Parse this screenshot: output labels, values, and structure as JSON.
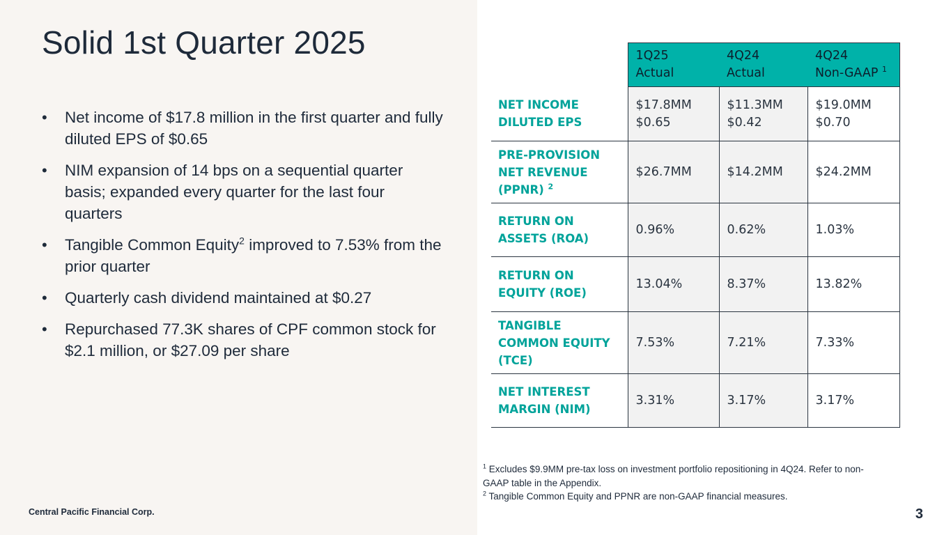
{
  "slide": {
    "title": "Solid 1st Quarter 2025",
    "company": "Central Pacific Financial Corp.",
    "page_number": "3"
  },
  "bullets": [
    {
      "text": "Net income of $17.8 million in the first quarter and fully diluted EPS of $0.65"
    },
    {
      "text": "NIM expansion of 14 bps on a sequential quarter basis; expanded every quarter for the last four quarters"
    },
    {
      "pre": "Tangible Common Equity",
      "sup": "2",
      "post": " improved to 7.53% from the prior quarter"
    },
    {
      "text": "Quarterly cash dividend maintained at $0.27"
    },
    {
      "text": "Repurchased 77.3K shares of CPF common stock for $2.1 million, or $27.09 per share"
    }
  ],
  "table": {
    "headers": [
      {
        "line1": "1Q25",
        "line2": "Actual",
        "sup": ""
      },
      {
        "line1": "4Q24",
        "line2": "Actual",
        "sup": ""
      },
      {
        "line1": "4Q24",
        "line2": "Non-GAAP",
        "sup": "1"
      }
    ],
    "rows": [
      {
        "metric_lines": [
          "NET INCOME",
          "DILUTED EPS"
        ],
        "metric_sup": "",
        "values": [
          [
            "$17.8MM",
            "$0.65"
          ],
          [
            "$11.3MM",
            "$0.42"
          ],
          [
            "$19.0MM",
            "$0.70"
          ]
        ]
      },
      {
        "metric_lines": [
          "PRE-PROVISION",
          "NET REVENUE",
          "(PPNR)"
        ],
        "metric_sup": "2",
        "values": [
          [
            "$26.7MM"
          ],
          [
            "$14.2MM"
          ],
          [
            "$24.2MM"
          ]
        ]
      },
      {
        "metric_lines": [
          "RETURN ON",
          "ASSETS (ROA)"
        ],
        "metric_sup": "",
        "values": [
          [
            "0.96%"
          ],
          [
            "0.62%"
          ],
          [
            "1.03%"
          ]
        ]
      },
      {
        "metric_lines": [
          "RETURN ON",
          "EQUITY (ROE)"
        ],
        "metric_sup": "",
        "values": [
          [
            "13.04%"
          ],
          [
            "8.37%"
          ],
          [
            "13.82%"
          ]
        ]
      },
      {
        "metric_lines": [
          "TANGIBLE",
          "COMMON EQUITY",
          "(TCE)"
        ],
        "metric_sup": "",
        "values": [
          [
            "7.53%"
          ],
          [
            "7.21%"
          ],
          [
            "7.33%"
          ]
        ]
      },
      {
        "metric_lines": [
          "NET INTEREST",
          "MARGIN (NIM)"
        ],
        "metric_sup": "",
        "values": [
          [
            "3.31%"
          ],
          [
            "3.17%"
          ],
          [
            "3.17%"
          ]
        ]
      }
    ]
  },
  "footnotes": [
    {
      "sup": "1",
      "lines": [
        "Excludes $9.9MM pre-tax loss on investment portfolio repositioning in 4Q24. Refer to non-",
        "GAAP table in the Appendix."
      ]
    },
    {
      "sup": "2",
      "lines": [
        "Tangible Common Equity and PPNR are non-GAAP financial measures."
      ]
    }
  ],
  "colors": {
    "accent_teal": "#00b2a9",
    "metric_text": "#00a39a",
    "left_panel_bg": "#f8f5f2",
    "text_dark": "#1e2a3a"
  }
}
